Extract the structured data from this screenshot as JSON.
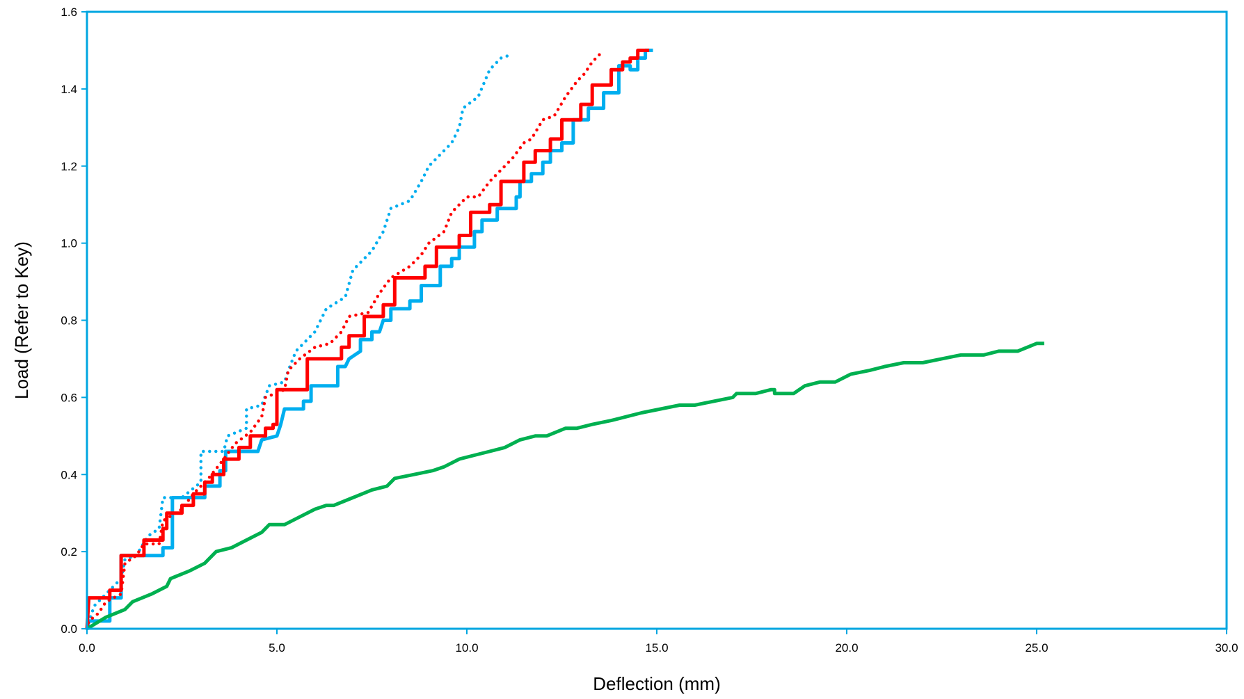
{
  "chart_data": {
    "type": "line",
    "title": "",
    "xlabel": "Deflection (mm)",
    "ylabel": "Load (Refer to Key)",
    "xlim": [
      0,
      30
    ],
    "ylim": [
      0,
      1.6
    ],
    "x_ticks": [
      0,
      5,
      10,
      15,
      20,
      25,
      30
    ],
    "x_tick_labels": [
      "0.0",
      "5.0",
      "10.0",
      "15.0",
      "20.0",
      "25.0",
      "30.0"
    ],
    "y_ticks": [
      0,
      0.2,
      0.4,
      0.6,
      0.8,
      1.0,
      1.2,
      1.4,
      1.6
    ],
    "y_tick_labels": [
      "0.0",
      "0.2",
      "0.4",
      "0.6",
      "0.8",
      "1.0",
      "1.2",
      "1.4",
      "1.6"
    ],
    "grid": false,
    "legend": "none",
    "axis_color": "#00a6e0",
    "series": [
      {
        "color": "#00aeef",
        "style": "dotted",
        "points": [
          [
            0,
            0
          ],
          [
            0.05,
            0.02
          ],
          [
            0.2,
            0.06
          ],
          [
            0.5,
            0.09
          ],
          [
            0.9,
            0.13
          ],
          [
            1.0,
            0.18
          ],
          [
            1.3,
            0.19
          ],
          [
            1.6,
            0.24
          ],
          [
            1.9,
            0.26
          ],
          [
            2.0,
            0.34
          ],
          [
            2.5,
            0.34
          ],
          [
            3.0,
            0.38
          ],
          [
            3.0,
            0.46
          ],
          [
            3.6,
            0.46
          ],
          [
            3.7,
            0.5
          ],
          [
            4.2,
            0.52
          ],
          [
            4.2,
            0.57
          ],
          [
            4.6,
            0.58
          ],
          [
            4.8,
            0.63
          ],
          [
            5.2,
            0.64
          ],
          [
            5.3,
            0.67
          ],
          [
            5.5,
            0.72
          ],
          [
            6.0,
            0.77
          ],
          [
            6.3,
            0.83
          ],
          [
            6.8,
            0.86
          ],
          [
            7.0,
            0.93
          ],
          [
            7.5,
            0.98
          ],
          [
            7.8,
            1.03
          ],
          [
            8.0,
            1.09
          ],
          [
            8.5,
            1.11
          ],
          [
            8.8,
            1.16
          ],
          [
            9.0,
            1.2
          ],
          [
            9.6,
            1.26
          ],
          [
            9.8,
            1.3
          ],
          [
            9.9,
            1.35
          ],
          [
            10.3,
            1.38
          ],
          [
            10.6,
            1.45
          ],
          [
            10.9,
            1.48
          ],
          [
            11.2,
            1.49
          ]
        ]
      },
      {
        "color": "#00aeef",
        "style": "solid",
        "points": [
          [
            0,
            0
          ],
          [
            0.05,
            0.02
          ],
          [
            0.6,
            0.02
          ],
          [
            0.6,
            0.08
          ],
          [
            0.9,
            0.08
          ],
          [
            0.9,
            0.19
          ],
          [
            2.0,
            0.19
          ],
          [
            2.0,
            0.21
          ],
          [
            2.25,
            0.21
          ],
          [
            2.25,
            0.34
          ],
          [
            3.1,
            0.34
          ],
          [
            3.1,
            0.37
          ],
          [
            3.5,
            0.37
          ],
          [
            3.5,
            0.41
          ],
          [
            3.65,
            0.41
          ],
          [
            3.65,
            0.46
          ],
          [
            4.5,
            0.46
          ],
          [
            4.6,
            0.49
          ],
          [
            5.0,
            0.5
          ],
          [
            5.1,
            0.53
          ],
          [
            5.2,
            0.57
          ],
          [
            5.7,
            0.57
          ],
          [
            5.7,
            0.59
          ],
          [
            5.9,
            0.59
          ],
          [
            5.9,
            0.63
          ],
          [
            6.6,
            0.63
          ],
          [
            6.6,
            0.68
          ],
          [
            6.8,
            0.68
          ],
          [
            6.9,
            0.7
          ],
          [
            7.2,
            0.72
          ],
          [
            7.2,
            0.75
          ],
          [
            7.5,
            0.75
          ],
          [
            7.5,
            0.77
          ],
          [
            7.7,
            0.77
          ],
          [
            7.8,
            0.8
          ],
          [
            8.0,
            0.8
          ],
          [
            8.0,
            0.83
          ],
          [
            8.5,
            0.83
          ],
          [
            8.5,
            0.85
          ],
          [
            8.8,
            0.85
          ],
          [
            8.8,
            0.89
          ],
          [
            9.3,
            0.89
          ],
          [
            9.3,
            0.94
          ],
          [
            9.6,
            0.94
          ],
          [
            9.6,
            0.96
          ],
          [
            9.8,
            0.96
          ],
          [
            9.8,
            0.99
          ],
          [
            10.2,
            0.99
          ],
          [
            10.2,
            1.03
          ],
          [
            10.4,
            1.03
          ],
          [
            10.4,
            1.06
          ],
          [
            10.8,
            1.06
          ],
          [
            10.8,
            1.09
          ],
          [
            11.3,
            1.09
          ],
          [
            11.3,
            1.12
          ],
          [
            11.4,
            1.12
          ],
          [
            11.4,
            1.16
          ],
          [
            11.7,
            1.16
          ],
          [
            11.7,
            1.18
          ],
          [
            12.0,
            1.18
          ],
          [
            12.0,
            1.21
          ],
          [
            12.2,
            1.21
          ],
          [
            12.2,
            1.24
          ],
          [
            12.5,
            1.24
          ],
          [
            12.5,
            1.26
          ],
          [
            12.8,
            1.26
          ],
          [
            12.8,
            1.32
          ],
          [
            13.2,
            1.32
          ],
          [
            13.2,
            1.35
          ],
          [
            13.6,
            1.35
          ],
          [
            13.6,
            1.39
          ],
          [
            14.0,
            1.39
          ],
          [
            14.0,
            1.46
          ],
          [
            14.3,
            1.46
          ],
          [
            14.3,
            1.45
          ],
          [
            14.5,
            1.45
          ],
          [
            14.5,
            1.48
          ],
          [
            14.7,
            1.48
          ],
          [
            14.7,
            1.5
          ],
          [
            14.9,
            1.5
          ]
        ]
      },
      {
        "color": "#ff0000",
        "style": "dotted",
        "points": [
          [
            0,
            0
          ],
          [
            0.05,
            0.02
          ],
          [
            0.3,
            0.04
          ],
          [
            0.5,
            0.07
          ],
          [
            0.9,
            0.09
          ],
          [
            1.0,
            0.17
          ],
          [
            1.3,
            0.19
          ],
          [
            1.5,
            0.22
          ],
          [
            1.9,
            0.22
          ],
          [
            2.0,
            0.28
          ],
          [
            2.5,
            0.31
          ],
          [
            2.8,
            0.35
          ],
          [
            3.2,
            0.39
          ],
          [
            3.6,
            0.44
          ],
          [
            3.9,
            0.48
          ],
          [
            4.3,
            0.51
          ],
          [
            4.6,
            0.55
          ],
          [
            4.7,
            0.6
          ],
          [
            5.2,
            0.62
          ],
          [
            5.3,
            0.67
          ],
          [
            5.6,
            0.7
          ],
          [
            6.0,
            0.73
          ],
          [
            6.4,
            0.74
          ],
          [
            6.7,
            0.77
          ],
          [
            6.9,
            0.81
          ],
          [
            7.4,
            0.82
          ],
          [
            7.7,
            0.87
          ],
          [
            8.0,
            0.91
          ],
          [
            8.5,
            0.94
          ],
          [
            8.8,
            0.97
          ],
          [
            9.0,
            1.0
          ],
          [
            9.4,
            1.03
          ],
          [
            9.6,
            1.08
          ],
          [
            10.0,
            1.12
          ],
          [
            10.3,
            1.12
          ],
          [
            10.6,
            1.16
          ],
          [
            10.9,
            1.19
          ],
          [
            11.2,
            1.22
          ],
          [
            11.5,
            1.26
          ],
          [
            11.7,
            1.27
          ],
          [
            12.0,
            1.32
          ],
          [
            12.3,
            1.33
          ],
          [
            12.6,
            1.38
          ],
          [
            12.9,
            1.42
          ],
          [
            13.1,
            1.44
          ],
          [
            13.3,
            1.47
          ],
          [
            13.5,
            1.49
          ]
        ]
      },
      {
        "color": "#ff0000",
        "style": "solid",
        "points": [
          [
            0,
            0
          ],
          [
            0.05,
            0.08
          ],
          [
            0.6,
            0.08
          ],
          [
            0.6,
            0.1
          ],
          [
            0.9,
            0.1
          ],
          [
            0.9,
            0.19
          ],
          [
            1.5,
            0.19
          ],
          [
            1.5,
            0.23
          ],
          [
            2.0,
            0.23
          ],
          [
            2.0,
            0.26
          ],
          [
            2.1,
            0.26
          ],
          [
            2.1,
            0.3
          ],
          [
            2.5,
            0.3
          ],
          [
            2.5,
            0.32
          ],
          [
            2.8,
            0.32
          ],
          [
            2.8,
            0.35
          ],
          [
            3.1,
            0.35
          ],
          [
            3.1,
            0.38
          ],
          [
            3.3,
            0.38
          ],
          [
            3.3,
            0.4
          ],
          [
            3.6,
            0.4
          ],
          [
            3.6,
            0.44
          ],
          [
            4.0,
            0.44
          ],
          [
            4.0,
            0.47
          ],
          [
            4.3,
            0.47
          ],
          [
            4.3,
            0.5
          ],
          [
            4.7,
            0.5
          ],
          [
            4.7,
            0.52
          ],
          [
            4.9,
            0.52
          ],
          [
            4.9,
            0.53
          ],
          [
            5.0,
            0.53
          ],
          [
            5.0,
            0.62
          ],
          [
            5.8,
            0.62
          ],
          [
            5.8,
            0.7
          ],
          [
            6.7,
            0.7
          ],
          [
            6.7,
            0.73
          ],
          [
            6.9,
            0.73
          ],
          [
            6.9,
            0.76
          ],
          [
            7.3,
            0.76
          ],
          [
            7.3,
            0.81
          ],
          [
            7.8,
            0.81
          ],
          [
            7.8,
            0.84
          ],
          [
            8.1,
            0.84
          ],
          [
            8.1,
            0.91
          ],
          [
            8.9,
            0.91
          ],
          [
            8.9,
            0.94
          ],
          [
            9.2,
            0.94
          ],
          [
            9.2,
            0.99
          ],
          [
            9.8,
            0.99
          ],
          [
            9.8,
            1.02
          ],
          [
            10.1,
            1.02
          ],
          [
            10.1,
            1.08
          ],
          [
            10.6,
            1.08
          ],
          [
            10.6,
            1.1
          ],
          [
            10.9,
            1.1
          ],
          [
            10.9,
            1.16
          ],
          [
            11.5,
            1.16
          ],
          [
            11.5,
            1.21
          ],
          [
            11.8,
            1.21
          ],
          [
            11.8,
            1.24
          ],
          [
            12.2,
            1.24
          ],
          [
            12.2,
            1.27
          ],
          [
            12.5,
            1.27
          ],
          [
            12.5,
            1.32
          ],
          [
            13.0,
            1.32
          ],
          [
            13.0,
            1.36
          ],
          [
            13.3,
            1.36
          ],
          [
            13.3,
            1.41
          ],
          [
            13.8,
            1.41
          ],
          [
            13.8,
            1.45
          ],
          [
            14.1,
            1.45
          ],
          [
            14.1,
            1.47
          ],
          [
            14.3,
            1.47
          ],
          [
            14.3,
            1.48
          ],
          [
            14.5,
            1.48
          ],
          [
            14.5,
            1.5
          ],
          [
            14.8,
            1.5
          ]
        ]
      },
      {
        "color": "#00b050",
        "style": "solid",
        "points": [
          [
            0,
            0
          ],
          [
            0.5,
            0.03
          ],
          [
            1.0,
            0.05
          ],
          [
            1.2,
            0.07
          ],
          [
            1.7,
            0.09
          ],
          [
            2.1,
            0.11
          ],
          [
            2.2,
            0.13
          ],
          [
            2.7,
            0.15
          ],
          [
            3.1,
            0.17
          ],
          [
            3.4,
            0.2
          ],
          [
            3.8,
            0.21
          ],
          [
            4.2,
            0.23
          ],
          [
            4.6,
            0.25
          ],
          [
            4.8,
            0.27
          ],
          [
            5.2,
            0.27
          ],
          [
            5.6,
            0.29
          ],
          [
            6.0,
            0.31
          ],
          [
            6.3,
            0.32
          ],
          [
            6.5,
            0.32
          ],
          [
            7.0,
            0.34
          ],
          [
            7.5,
            0.36
          ],
          [
            7.9,
            0.37
          ],
          [
            8.1,
            0.39
          ],
          [
            8.6,
            0.4
          ],
          [
            9.1,
            0.41
          ],
          [
            9.4,
            0.42
          ],
          [
            9.8,
            0.44
          ],
          [
            10.2,
            0.45
          ],
          [
            10.6,
            0.46
          ],
          [
            11.0,
            0.47
          ],
          [
            11.2,
            0.48
          ],
          [
            11.4,
            0.49
          ],
          [
            11.8,
            0.5
          ],
          [
            12.1,
            0.5
          ],
          [
            12.6,
            0.52
          ],
          [
            12.9,
            0.52
          ],
          [
            13.3,
            0.53
          ],
          [
            13.8,
            0.54
          ],
          [
            14.2,
            0.55
          ],
          [
            14.6,
            0.56
          ],
          [
            15.1,
            0.57
          ],
          [
            15.6,
            0.58
          ],
          [
            16.0,
            0.58
          ],
          [
            16.5,
            0.59
          ],
          [
            17.0,
            0.6
          ],
          [
            17.1,
            0.61
          ],
          [
            17.6,
            0.61
          ],
          [
            18.0,
            0.62
          ],
          [
            18.1,
            0.62
          ],
          [
            18.1,
            0.61
          ],
          [
            18.6,
            0.61
          ],
          [
            18.9,
            0.63
          ],
          [
            19.3,
            0.64
          ],
          [
            19.7,
            0.64
          ],
          [
            20.1,
            0.66
          ],
          [
            20.6,
            0.67
          ],
          [
            21.0,
            0.68
          ],
          [
            21.5,
            0.69
          ],
          [
            22.0,
            0.69
          ],
          [
            22.5,
            0.7
          ],
          [
            23.0,
            0.71
          ],
          [
            23.3,
            0.71
          ],
          [
            23.6,
            0.71
          ],
          [
            24.0,
            0.72
          ],
          [
            24.5,
            0.72
          ],
          [
            25.0,
            0.74
          ],
          [
            25.2,
            0.74
          ]
        ]
      }
    ]
  }
}
